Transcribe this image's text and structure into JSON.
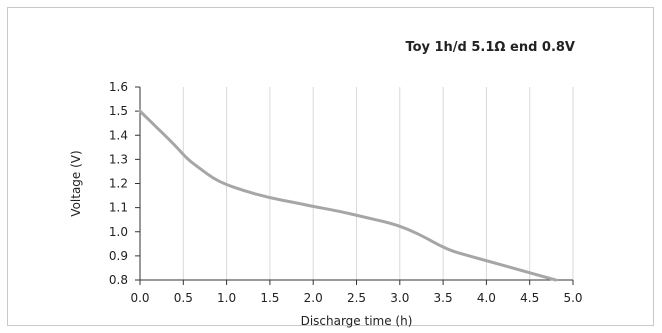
{
  "chart_data": {
    "type": "line",
    "title": "Toy 1h/d 5.1Ω end 0.8V",
    "xlabel": "Discharge time (h)",
    "ylabel": "Voltage (V)",
    "xlim": [
      0.0,
      5.0
    ],
    "ylim": [
      0.8,
      1.6
    ],
    "xticks": [
      "0.0",
      "0.5",
      "1.0",
      "1.5",
      "2.0",
      "2.5",
      "3.0",
      "3.5",
      "4.0",
      "4.5",
      "5.0"
    ],
    "yticks": [
      "0.8",
      "0.9",
      "1.0",
      "1.1",
      "1.2",
      "1.3",
      "1.4",
      "1.5",
      "1.6"
    ],
    "grid": "vertical",
    "line_color": "#a6a6a6",
    "series": [
      {
        "x": [
          0.0,
          0.2,
          0.4,
          0.55,
          0.7,
          0.85,
          1.0,
          1.2,
          1.5,
          1.8,
          2.0,
          2.3,
          2.6,
          2.9,
          3.1,
          3.3,
          3.45,
          3.6,
          3.8,
          4.1,
          4.4,
          4.8
        ],
        "y": [
          1.5,
          1.43,
          1.36,
          1.3,
          1.26,
          1.22,
          1.195,
          1.17,
          1.14,
          1.12,
          1.105,
          1.085,
          1.06,
          1.035,
          1.01,
          0.975,
          0.945,
          0.92,
          0.9,
          0.87,
          0.84,
          0.8
        ]
      }
    ]
  }
}
